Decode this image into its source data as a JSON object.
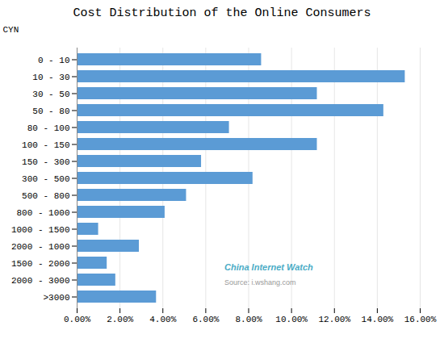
{
  "chart_data": {
    "type": "bar",
    "orientation": "horizontal",
    "title": "Cost Distribution of the Online Consumers",
    "ylabel": "CYN",
    "categories": [
      "0 - 10",
      "10 - 30",
      "30 - 50",
      "50 - 80",
      "80 - 100",
      "100 - 150",
      "150 - 300",
      "300 - 500",
      "500 - 800",
      "800 - 1000",
      "1000 - 1500",
      "2000 - 1000",
      "1500 - 2000",
      "2000 - 3000",
      ">3000"
    ],
    "values": [
      0.086,
      0.153,
      0.112,
      0.143,
      0.071,
      0.112,
      0.058,
      0.082,
      0.051,
      0.041,
      0.01,
      0.029,
      0.014,
      0.018,
      0.037
    ],
    "color": "#5B9BD5",
    "xlim": [
      0,
      0.16
    ],
    "xticks": [
      {
        "value": 0.0,
        "label": "0.00%"
      },
      {
        "value": 0.02,
        "label": "2.00%"
      },
      {
        "value": 0.04,
        "label": "4.00%"
      },
      {
        "value": 0.06,
        "label": "6.00%"
      },
      {
        "value": 0.08,
        "label": "8.00%"
      },
      {
        "value": 0.1,
        "label": "10.00%"
      },
      {
        "value": 0.12,
        "label": "12.00%"
      },
      {
        "value": 0.14,
        "label": "14.00%"
      },
      {
        "value": 0.16,
        "label": "16.00%"
      }
    ],
    "grid": true,
    "annotations": [
      {
        "text": "China Internet Watch",
        "color": "#4BACC6"
      },
      {
        "text": "Source: i.wshang.com",
        "color": "#999999"
      }
    ]
  }
}
